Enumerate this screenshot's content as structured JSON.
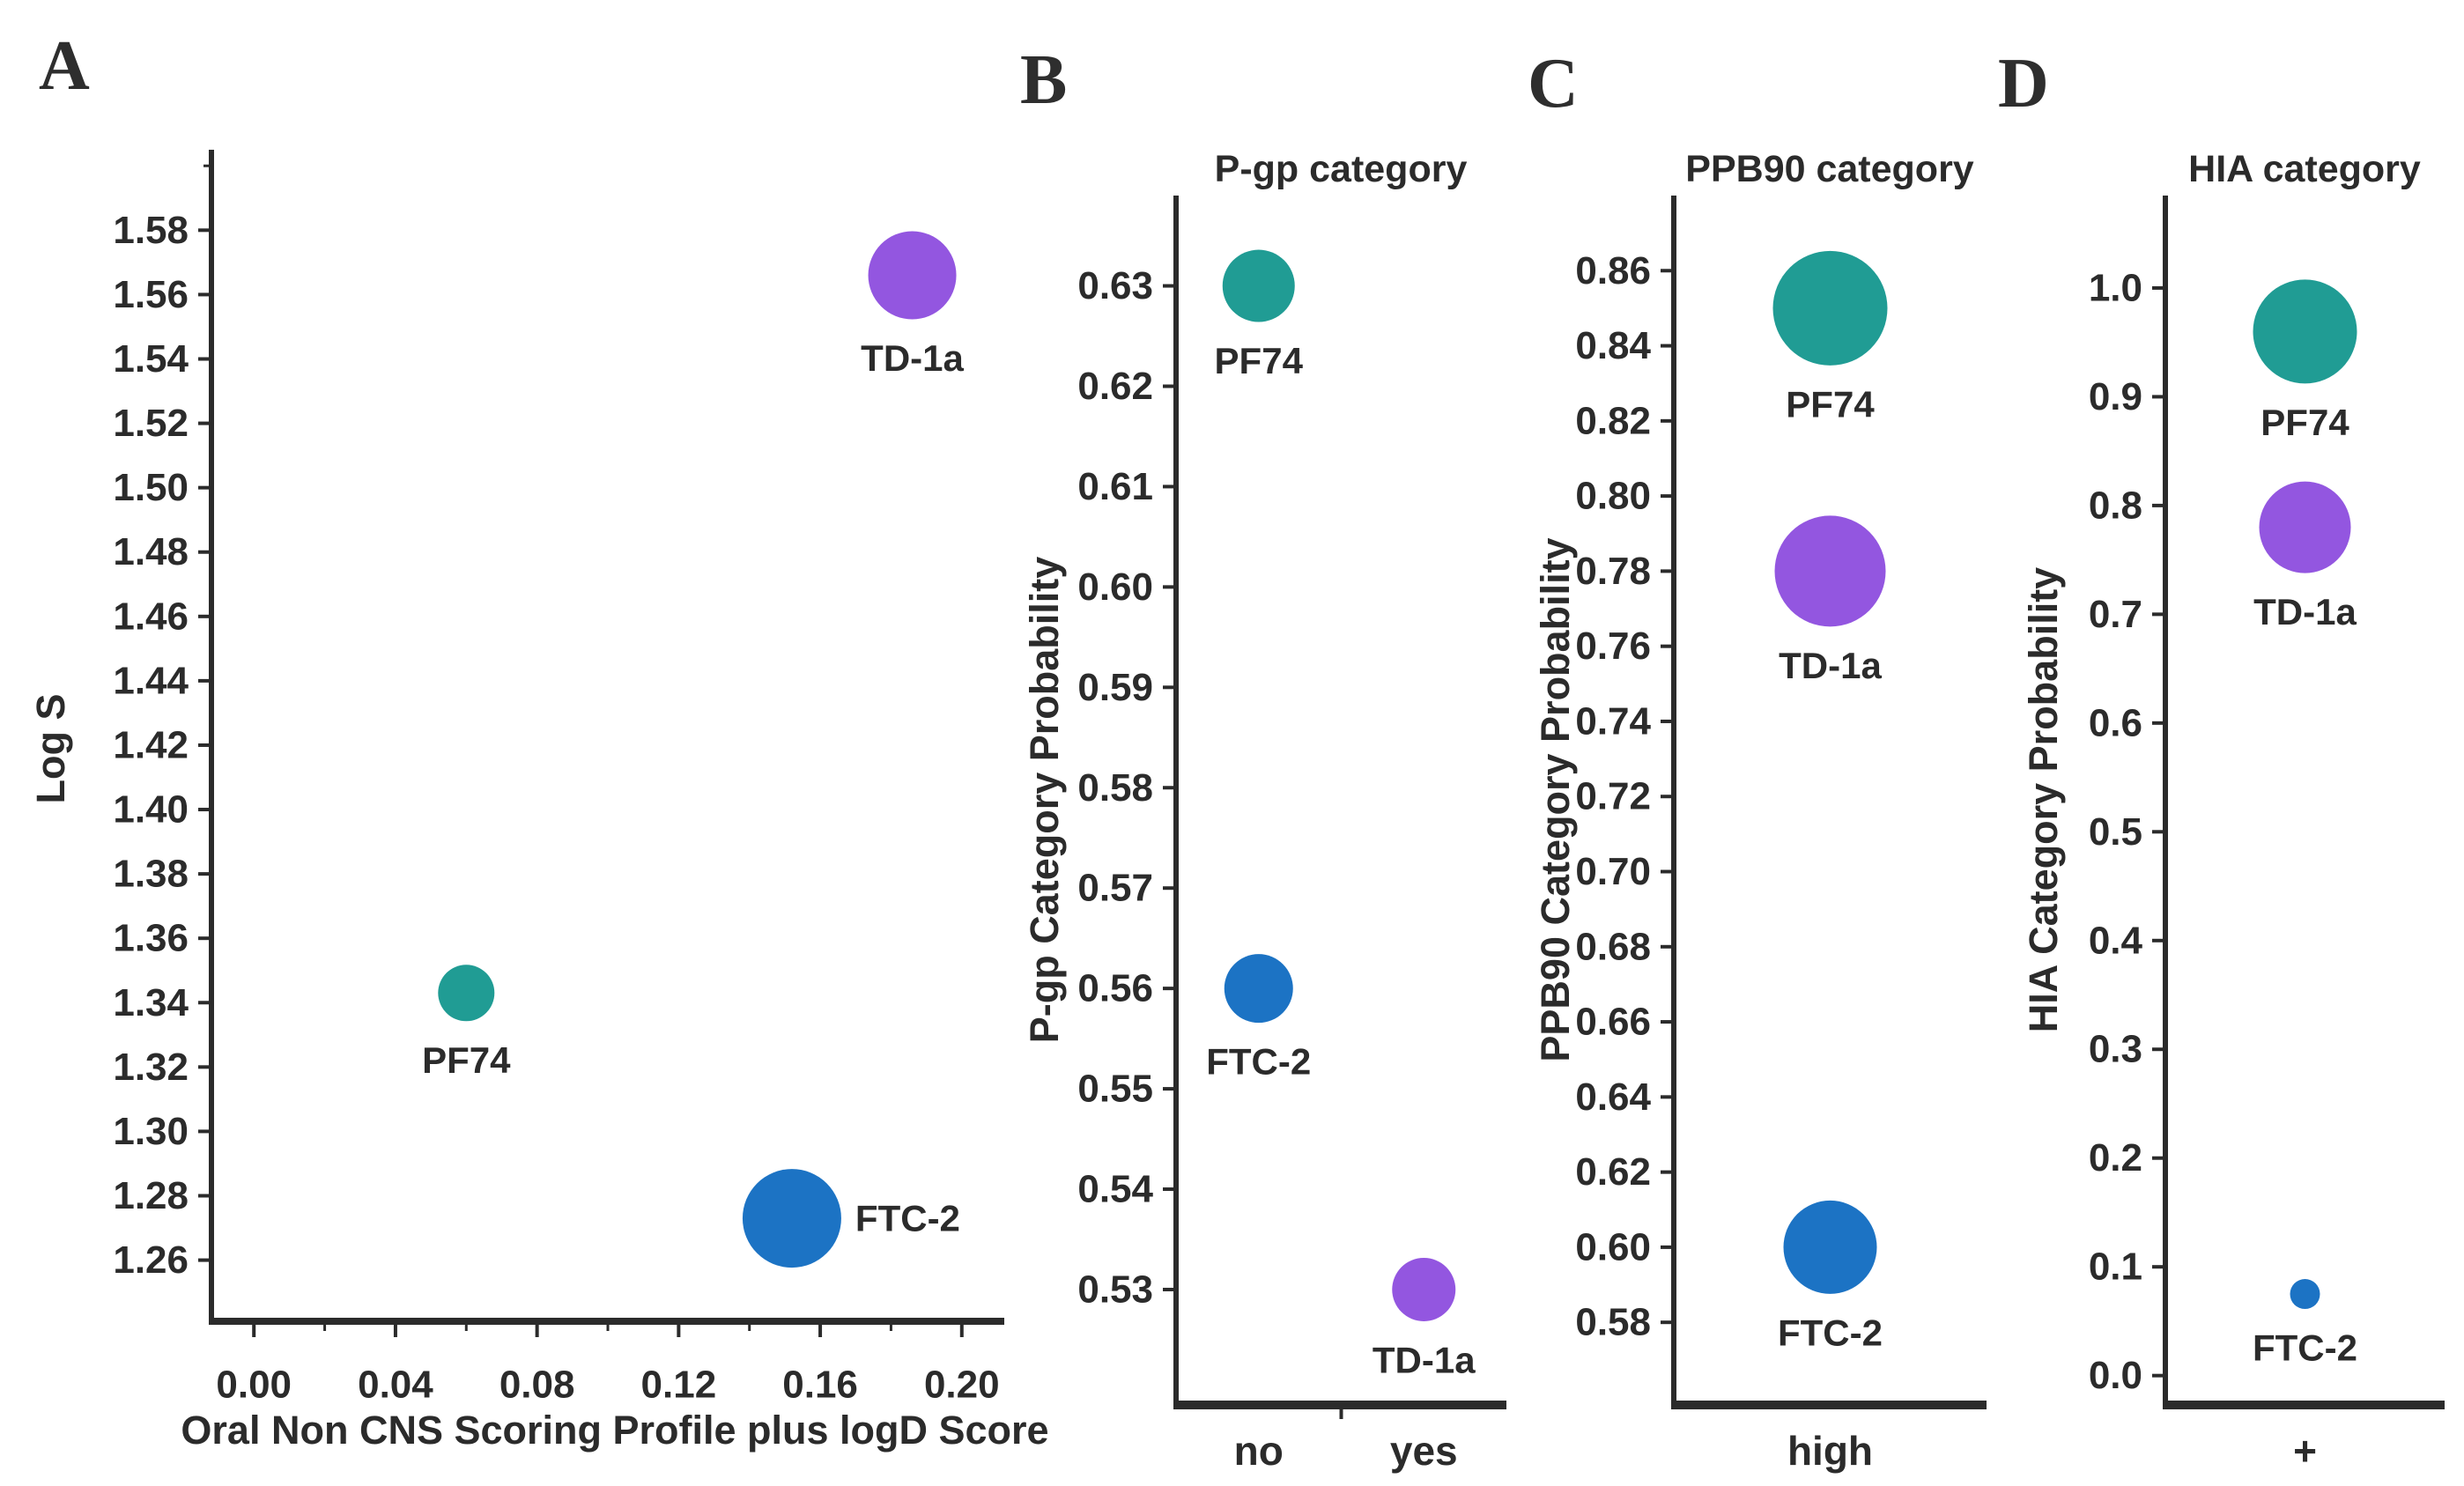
{
  "colors": {
    "pf74": "#209c94",
    "td1a": "#9356e0",
    "ftc2": "#1c73c4",
    "axis": "#2b2b2b",
    "text": "#2b2b2b"
  },
  "panels": [
    {
      "letter": "A",
      "title": "",
      "y_label": "Log S",
      "x_label": "Oral Non CNS Scoring Profile plus logD Score"
    },
    {
      "letter": "B",
      "title": "P-gp category",
      "y_label": "P-gp Category Probability",
      "x_label": ""
    },
    {
      "letter": "C",
      "title": "PPB90 category",
      "y_label": "PPB90 Category Probability",
      "x_label": ""
    },
    {
      "letter": "D",
      "title": "HIA category",
      "y_label": "HIA Category Probability",
      "x_label": ""
    }
  ],
  "chart_data": [
    {
      "panel": "A",
      "type": "scatter",
      "title": "",
      "xlabel": "Oral Non CNS Scoring Profile plus logD Score",
      "ylabel": "Log S",
      "xlim": [
        -0.012,
        0.212
      ],
      "ylim": [
        1.241,
        1.605
      ],
      "x_ticks": [
        0.0,
        0.04,
        0.08,
        0.12,
        0.16,
        0.2
      ],
      "x_minor_ticks": [
        0.02,
        0.06,
        0.1,
        0.14,
        0.18
      ],
      "y_ticks": [
        1.26,
        1.28,
        1.3,
        1.32,
        1.34,
        1.36,
        1.38,
        1.4,
        1.42,
        1.44,
        1.46,
        1.48,
        1.5,
        1.52,
        1.54,
        1.56,
        1.58
      ],
      "y_minor_ticks": [
        1.6
      ],
      "x_tick_decimals": 2,
      "y_tick_decimals": 2,
      "grid": false,
      "legend": "none",
      "points": [
        {
          "name": "TD-1a",
          "x": 0.186,
          "y": 1.566,
          "diameter": 100,
          "color_key": "td1a",
          "label_pos": "below"
        },
        {
          "name": "PF74",
          "x": 0.06,
          "y": 1.343,
          "diameter": 64,
          "color_key": "pf74",
          "label_pos": "below"
        },
        {
          "name": "FTC-2",
          "x": 0.152,
          "y": 1.273,
          "diameter": 112,
          "color_key": "ftc2",
          "label_pos": "right"
        }
      ]
    },
    {
      "panel": "B",
      "type": "bubble",
      "title": "P-gp category",
      "xlabel": "",
      "ylabel": "P-gp Category Probability",
      "categories": [
        "no",
        "yes"
      ],
      "ylim": [
        0.5185,
        0.639
      ],
      "y_ticks": [
        0.53,
        0.54,
        0.55,
        0.56,
        0.57,
        0.58,
        0.59,
        0.6,
        0.61,
        0.62,
        0.63
      ],
      "y_tick_decimals": 2,
      "grid": false,
      "legend": "none",
      "points": [
        {
          "name": "PF74",
          "category": "no",
          "y": 0.63,
          "diameter": 82,
          "color_key": "pf74",
          "label_pos": "below"
        },
        {
          "name": "FTC-2",
          "category": "no",
          "y": 0.56,
          "diameter": 78,
          "color_key": "ftc2",
          "label_pos": "below"
        },
        {
          "name": "TD-1a",
          "category": "yes",
          "y": 0.53,
          "diameter": 72,
          "color_key": "td1a",
          "label_pos": "below"
        }
      ]
    },
    {
      "panel": "C",
      "type": "bubble",
      "title": "PPB90 category",
      "xlabel": "",
      "ylabel": "PPB90 Category Probability",
      "categories": [
        "high"
      ],
      "ylim": [
        0.558,
        0.88
      ],
      "y_ticks": [
        0.58,
        0.6,
        0.62,
        0.64,
        0.66,
        0.68,
        0.7,
        0.72,
        0.74,
        0.76,
        0.78,
        0.8,
        0.82,
        0.84,
        0.86
      ],
      "y_tick_decimals": 2,
      "grid": false,
      "legend": "none",
      "points": [
        {
          "name": "PF74",
          "category": "high",
          "y": 0.85,
          "diameter": 130,
          "color_key": "pf74",
          "label_pos": "below"
        },
        {
          "name": "TD-1a",
          "category": "high",
          "y": 0.78,
          "diameter": 126,
          "color_key": "td1a",
          "label_pos": "below"
        },
        {
          "name": "FTC-2",
          "category": "high",
          "y": 0.6,
          "diameter": 106,
          "color_key": "ftc2",
          "label_pos": "below"
        }
      ]
    },
    {
      "panel": "D",
      "type": "bubble",
      "title": "HIA category",
      "xlabel": "",
      "ylabel": "HIA Category Probability",
      "categories": [
        "+"
      ],
      "ylim": [
        -0.027,
        1.085
      ],
      "y_ticks": [
        0.0,
        0.1,
        0.2,
        0.3,
        0.4,
        0.5,
        0.6,
        0.7,
        0.8,
        0.9,
        1.0
      ],
      "y_tick_decimals": 1,
      "grid": false,
      "legend": "none",
      "points": [
        {
          "name": "PF74",
          "category": "+",
          "y": 0.96,
          "diameter": 118,
          "color_key": "pf74",
          "label_pos": "below"
        },
        {
          "name": "TD-1a",
          "category": "+",
          "y": 0.78,
          "diameter": 104,
          "color_key": "td1a",
          "label_pos": "below"
        },
        {
          "name": "FTC-2",
          "category": "+",
          "y": 0.075,
          "diameter": 34,
          "color_key": "ftc2",
          "label_pos": "below"
        }
      ]
    }
  ]
}
